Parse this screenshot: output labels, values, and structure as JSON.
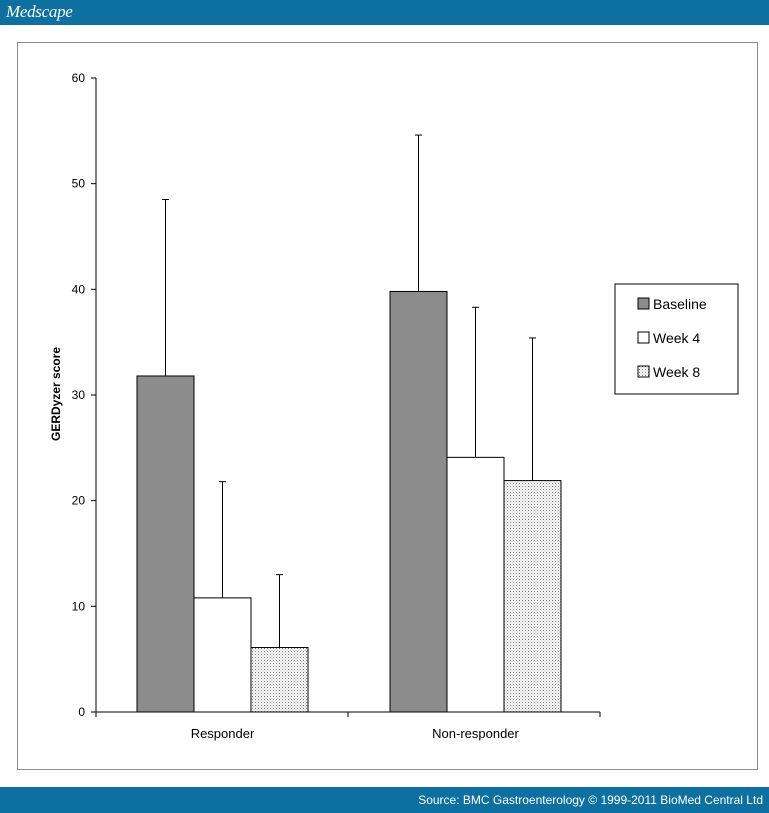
{
  "header": {
    "logo_text": "Medscape",
    "bar_color": "#0e6fa1"
  },
  "footer": {
    "source": "Source: BMC Gastroenterology © 1999-2011 BioMed Central Ltd"
  },
  "chart_data": {
    "type": "bar",
    "title": "",
    "xlabel": "",
    "ylabel": "GERDyzer score",
    "ylim": [
      0,
      60
    ],
    "yticks": [
      0,
      10,
      20,
      30,
      40,
      50,
      60
    ],
    "categories": [
      "Responder",
      "Non-responder"
    ],
    "series": [
      {
        "name": "Baseline",
        "values": [
          31.8,
          39.8
        ],
        "error_upper": [
          48.5,
          54.6
        ],
        "fill": "#8c8c8c",
        "pattern": "solid"
      },
      {
        "name": "Week 4",
        "values": [
          10.8,
          24.1
        ],
        "error_upper": [
          21.8,
          38.3
        ],
        "fill": "#ffffff",
        "pattern": "solid"
      },
      {
        "name": "Week 8",
        "values": [
          6.1,
          21.9
        ],
        "error_upper": [
          13.0,
          35.4
        ],
        "fill": "#ffffff",
        "pattern": "dotted"
      }
    ],
    "grid": false,
    "legend_position": "right"
  }
}
